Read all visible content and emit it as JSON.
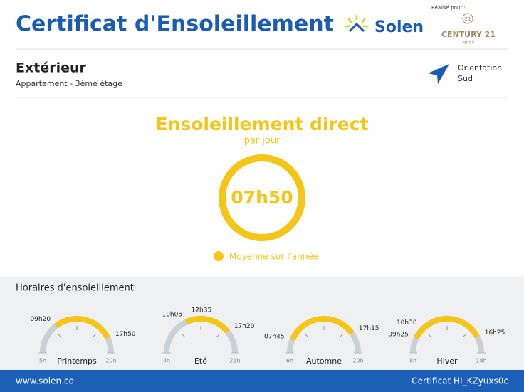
{
  "header": {
    "title": "Certificat d'Ensoleillement",
    "brand": "Solen",
    "made_for": "Réalisé pour :",
    "agency_logo": "21",
    "agency": "CENTURY 21",
    "agency_city": "Miroir"
  },
  "property": {
    "type": "Extérieur",
    "description": "Appartement - 3ème étage",
    "orientation_label": "Orientation",
    "orientation": "Sud"
  },
  "summary": {
    "title": "Ensoleillement direct",
    "subtitle": "par jour",
    "value": "07h50",
    "legend": "Moyenne sur l'année"
  },
  "hours": {
    "title": "Horaires d'ensoleillement",
    "seasons": [
      {
        "name": "Printemps",
        "min": "5h",
        "max": "20h",
        "times": [
          "09h20",
          "17h50"
        ]
      },
      {
        "name": "Eté",
        "min": "4h",
        "max": "21h",
        "times": [
          "10h05",
          "12h35",
          "17h20"
        ]
      },
      {
        "name": "Automne",
        "min": "6h",
        "max": "20h",
        "times": [
          "07h45",
          "17h15"
        ]
      },
      {
        "name": "Hiver",
        "min": "8h",
        "max": "18h",
        "times": [
          "09h25",
          "10h30",
          "16h25"
        ]
      }
    ]
  },
  "footer": {
    "website": "www.solen.co",
    "certificate_id": "Certificat HI_KZyuxs0c"
  }
}
